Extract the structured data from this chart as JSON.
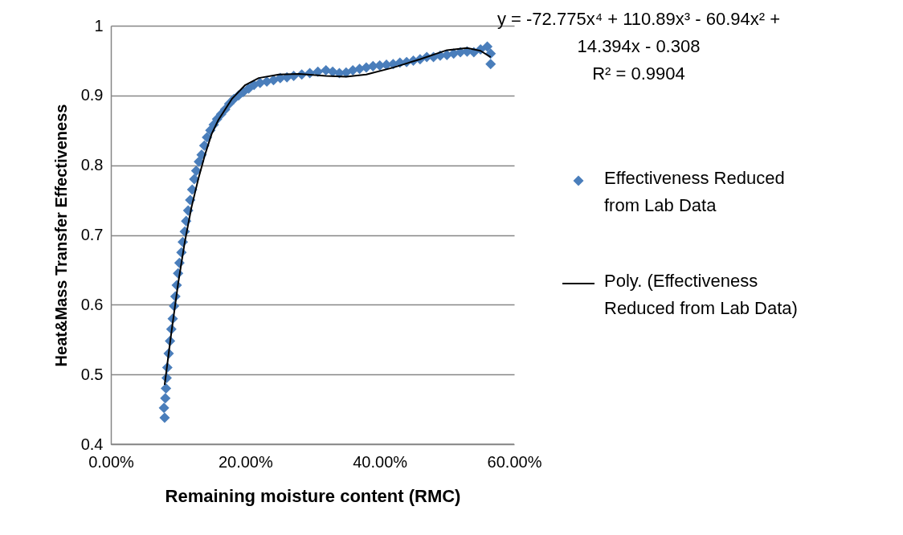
{
  "chart_data": {
    "type": "scatter",
    "xlabel": "Remaining moisture content (RMC)",
    "ylabel": "Heat&Mass Transfer Effectiveness",
    "xlim": [
      0,
      0.6
    ],
    "xticks": [
      {
        "value": 0,
        "label": "0.00%"
      },
      {
        "value": 0.2,
        "label": "20.00%"
      },
      {
        "value": 0.4,
        "label": "40.00%"
      },
      {
        "value": 0.6,
        "label": "60.00%"
      }
    ],
    "ylim": [
      0.4,
      1
    ],
    "yticks": [
      0.4,
      0.5,
      0.6,
      0.7,
      0.8,
      0.9,
      1
    ],
    "grid": "y",
    "legend": "right",
    "marker": "diamond",
    "annotations": [
      "y = -72.775x⁴ + 110.89x³ - 60.94x² + 14.394x - 0.308",
      "R² = 0.9904"
    ],
    "series": [
      {
        "name": "Effectiveness Reduced from Lab Data",
        "color": "#4a7ebb",
        "x": [
          0.08,
          0.079,
          0.081,
          0.082,
          0.083,
          0.084,
          0.086,
          0.088,
          0.09,
          0.092,
          0.094,
          0.096,
          0.098,
          0.1,
          0.102,
          0.105,
          0.107,
          0.11,
          0.112,
          0.115,
          0.118,
          0.121,
          0.124,
          0.127,
          0.131,
          0.135,
          0.139,
          0.143,
          0.148,
          0.153,
          0.158,
          0.164,
          0.17,
          0.176,
          0.183,
          0.19,
          0.197,
          0.205,
          0.213,
          0.222,
          0.232,
          0.242,
          0.252,
          0.262,
          0.272,
          0.284,
          0.296,
          0.308,
          0.32,
          0.33,
          0.34,
          0.35,
          0.36,
          0.37,
          0.38,
          0.39,
          0.4,
          0.41,
          0.42,
          0.43,
          0.44,
          0.45,
          0.46,
          0.47,
          0.48,
          0.49,
          0.5,
          0.51,
          0.52,
          0.53,
          0.54,
          0.55,
          0.56,
          0.565,
          0.565
        ],
        "values": [
          0.438,
          0.452,
          0.466,
          0.48,
          0.495,
          0.51,
          0.53,
          0.548,
          0.565,
          0.58,
          0.598,
          0.612,
          0.628,
          0.645,
          0.66,
          0.675,
          0.69,
          0.705,
          0.72,
          0.735,
          0.75,
          0.765,
          0.78,
          0.792,
          0.805,
          0.815,
          0.828,
          0.84,
          0.85,
          0.858,
          0.866,
          0.873,
          0.88,
          0.888,
          0.895,
          0.9,
          0.905,
          0.91,
          0.915,
          0.918,
          0.92,
          0.922,
          0.925,
          0.926,
          0.928,
          0.93,
          0.932,
          0.934,
          0.936,
          0.934,
          0.932,
          0.933,
          0.936,
          0.938,
          0.94,
          0.942,
          0.943,
          0.944,
          0.945,
          0.947,
          0.948,
          0.95,
          0.952,
          0.955,
          0.955,
          0.957,
          0.958,
          0.96,
          0.962,
          0.963,
          0.962,
          0.966,
          0.97,
          0.96,
          0.945
        ]
      },
      {
        "name": "Poly. (Effectiveness Reduced from Lab Data)",
        "type": "line",
        "color": "#000000",
        "marker": "none",
        "x": [
          0.08,
          0.09,
          0.1,
          0.11,
          0.12,
          0.13,
          0.14,
          0.15,
          0.16,
          0.18,
          0.2,
          0.22,
          0.25,
          0.28,
          0.32,
          0.35,
          0.38,
          0.42,
          0.46,
          0.5,
          0.53,
          0.55,
          0.565
        ],
        "values": [
          0.485,
          0.56,
          0.63,
          0.69,
          0.74,
          0.78,
          0.815,
          0.845,
          0.865,
          0.895,
          0.915,
          0.925,
          0.93,
          0.931,
          0.928,
          0.927,
          0.93,
          0.94,
          0.952,
          0.965,
          0.968,
          0.964,
          0.955
        ]
      }
    ]
  }
}
